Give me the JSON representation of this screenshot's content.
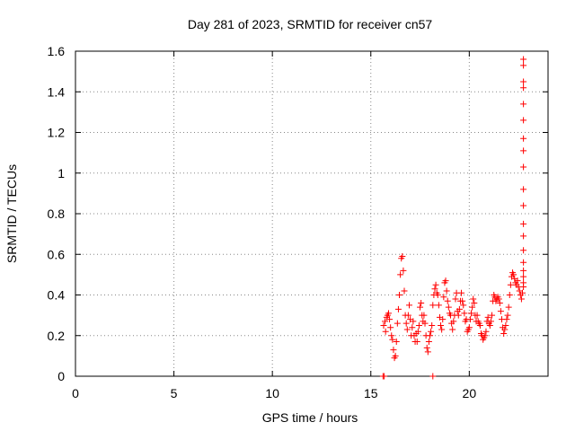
{
  "chart_data": {
    "type": "scatter",
    "title": "Day 281 of 2023, SRMTID for receiver cn57",
    "xlabel": "GPS time / hours",
    "ylabel": "SRMTID / TECUs",
    "xlim": [
      0,
      24
    ],
    "ylim": [
      0,
      1.6
    ],
    "xticks": [
      0,
      5,
      10,
      15,
      20
    ],
    "yticks": [
      0,
      0.2,
      0.4,
      0.6,
      0.8,
      1,
      1.2,
      1.4,
      1.6
    ],
    "ytick_labels": [
      "0",
      "0.2",
      "0.4",
      "0.6",
      "0.8",
      "1",
      "1.2",
      "1.4",
      "1.6"
    ],
    "grid": true,
    "marker": "+",
    "series": [
      {
        "name": "cn57",
        "color": "#ff0000",
        "x": [
          15.65,
          15.72,
          15.75,
          15.8,
          15.85,
          15.9,
          15.95,
          16.0,
          16.05,
          16.1,
          16.15,
          16.2,
          16.25,
          16.3,
          16.35,
          16.4,
          16.45,
          16.5,
          16.55,
          16.6,
          16.65,
          16.7,
          16.75,
          16.8,
          16.85,
          16.9,
          16.95,
          17.0,
          17.05,
          17.1,
          17.15,
          17.2,
          17.25,
          17.3,
          17.35,
          17.4,
          17.45,
          17.5,
          17.55,
          17.6,
          17.65,
          17.7,
          17.75,
          17.8,
          17.85,
          17.9,
          17.95,
          18.0,
          18.05,
          18.1,
          18.15,
          18.2,
          18.25,
          18.3,
          18.35,
          18.4,
          18.45,
          18.5,
          18.55,
          18.6,
          18.65,
          18.7,
          18.75,
          18.8,
          18.85,
          18.9,
          18.95,
          19.0,
          19.05,
          19.1,
          19.15,
          19.2,
          19.25,
          19.3,
          19.35,
          19.4,
          19.45,
          19.5,
          19.55,
          19.6,
          19.65,
          19.7,
          19.75,
          19.8,
          19.85,
          19.9,
          19.95,
          20.0,
          20.05,
          20.1,
          20.15,
          20.2,
          20.25,
          20.3,
          20.35,
          20.4,
          20.45,
          20.5,
          20.55,
          20.6,
          20.65,
          20.7,
          20.75,
          20.8,
          20.85,
          20.9,
          20.95,
          21.0,
          21.05,
          21.1,
          21.15,
          21.2,
          21.25,
          21.3,
          21.35,
          21.4,
          21.45,
          21.5,
          21.55,
          21.6,
          21.65,
          21.7,
          21.75,
          21.8,
          21.85,
          21.9,
          21.95,
          22.0,
          22.05,
          22.1,
          22.15,
          22.2,
          22.25,
          22.3,
          22.35,
          22.4,
          22.45,
          22.5,
          22.55,
          22.6,
          22.65,
          22.7,
          22.75,
          22.75,
          22.75,
          22.75,
          22.75,
          22.75,
          22.75,
          22.75,
          22.75,
          22.75,
          22.75,
          22.75,
          22.75,
          22.75,
          22.75,
          22.75,
          22.75,
          22.75,
          22.75,
          15.62,
          15.68,
          18.15
        ],
        "y": [
          0.25,
          0.27,
          0.22,
          0.29,
          0.3,
          0.31,
          0.28,
          0.24,
          0.2,
          0.18,
          0.13,
          0.09,
          0.1,
          0.17,
          0.26,
          0.33,
          0.4,
          0.5,
          0.58,
          0.59,
          0.52,
          0.42,
          0.3,
          0.26,
          0.23,
          0.3,
          0.35,
          0.28,
          0.2,
          0.24,
          0.27,
          0.2,
          0.17,
          0.21,
          0.17,
          0.22,
          0.25,
          0.34,
          0.36,
          0.3,
          0.27,
          0.3,
          0.26,
          0.2,
          0.14,
          0.12,
          0.17,
          0.2,
          0.22,
          0.25,
          0.35,
          0.4,
          0.43,
          0.45,
          0.41,
          0.4,
          0.35,
          0.29,
          0.25,
          0.23,
          0.28,
          0.39,
          0.46,
          0.47,
          0.42,
          0.37,
          0.34,
          0.31,
          0.3,
          0.26,
          0.23,
          0.27,
          0.3,
          0.38,
          0.41,
          0.32,
          0.3,
          0.33,
          0.37,
          0.41,
          0.37,
          0.35,
          0.31,
          0.27,
          0.28,
          0.22,
          0.23,
          0.24,
          0.28,
          0.31,
          0.34,
          0.38,
          0.36,
          0.3,
          0.27,
          0.3,
          0.27,
          0.26,
          0.25,
          0.21,
          0.2,
          0.18,
          0.19,
          0.2,
          0.22,
          0.27,
          0.29,
          0.26,
          0.25,
          0.27,
          0.3,
          0.37,
          0.4,
          0.39,
          0.37,
          0.38,
          0.39,
          0.38,
          0.36,
          0.32,
          0.28,
          0.24,
          0.21,
          0.23,
          0.25,
          0.28,
          0.3,
          0.34,
          0.4,
          0.45,
          0.49,
          0.51,
          0.5,
          0.48,
          0.46,
          0.45,
          0.47,
          0.44,
          0.42,
          0.4,
          0.38,
          0.41,
          0.44,
          0.46,
          0.49,
          0.52,
          0.56,
          0.62,
          0.69,
          0.75,
          0.84,
          0.92,
          1.03,
          1.11,
          1.17,
          1.26,
          1.34,
          1.42,
          1.45,
          1.53,
          1.56,
          0.0,
          0.0,
          0.0
        ]
      }
    ]
  }
}
